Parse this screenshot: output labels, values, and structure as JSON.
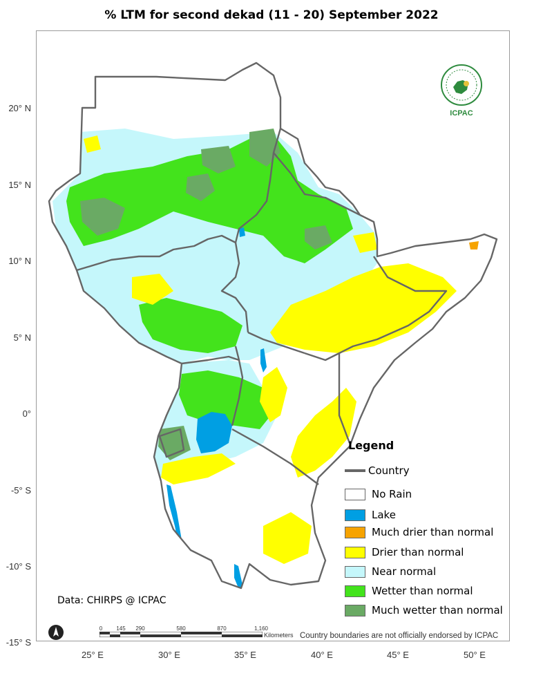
{
  "title": "% LTM for  second  dekad (11 - 20)  September 2022",
  "latitude_labels": [
    "20° N",
    "15° N",
    "10° N",
    "5° N",
    "0°",
    "-5° S",
    "-10° S",
    "-15° S"
  ],
  "longitude_labels": [
    "25° E",
    "30° E",
    "35° E",
    "40° E",
    "45° E",
    "50° E"
  ],
  "legend": {
    "title": "Legend",
    "country_label": "Country",
    "items": [
      {
        "label": "No Rain",
        "color": "#ffffff"
      },
      {
        "label": "Lake",
        "color": "#009fe3"
      },
      {
        "label": "Much drier than normal",
        "color": "#f6a300"
      },
      {
        "label": "Drier than normal",
        "color": "#ffff00"
      },
      {
        "label": "Near normal",
        "color": "#c5f7fb"
      },
      {
        "label": "Wetter than normal",
        "color": "#43e31c"
      },
      {
        "label": "Much wetter than normal",
        "color": "#6aaa64"
      }
    ]
  },
  "data_source": "Data: CHIRPS @ ICPAC",
  "disclaimer": "Country boundaries are not officially endorsed by ICPAC",
  "scale_bar": {
    "unit": "Kilometers",
    "ticks": [
      "0",
      "145",
      "290",
      "580",
      "870",
      "1,160"
    ]
  },
  "logo": {
    "top_text": "IGAD",
    "bottom_text": "ICPAC"
  },
  "colors": {
    "boundary": "#666666",
    "frame": "#9a9a9a"
  }
}
